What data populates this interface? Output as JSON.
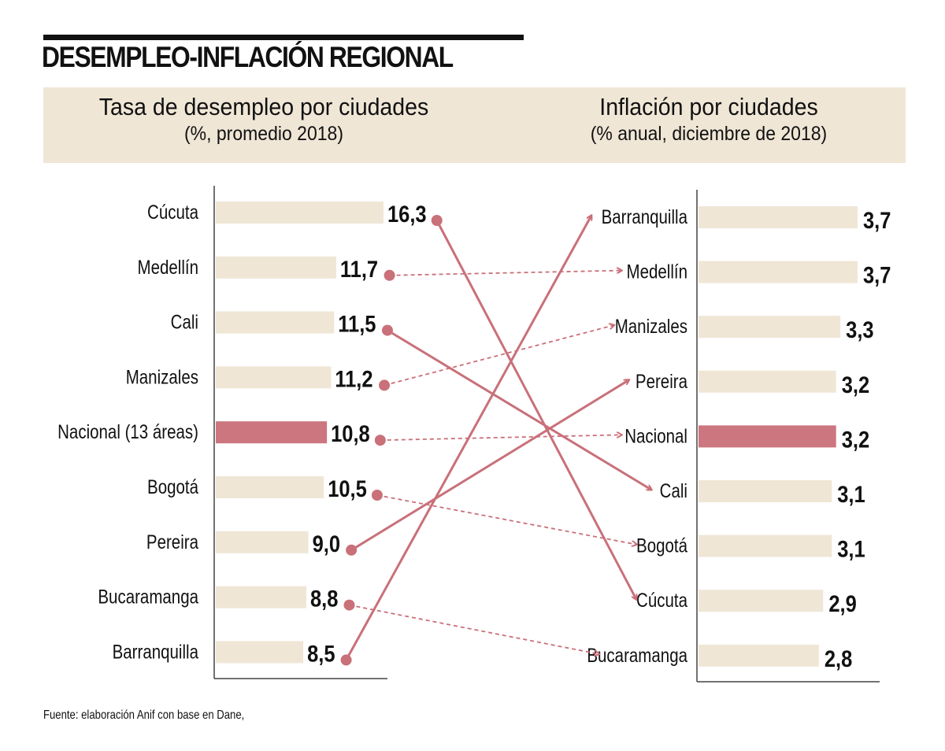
{
  "title": "DESEMPLEO-INFLACIÓN REGIONAL",
  "colors": {
    "bar": "#efe6d6",
    "highlight": "#cc7680",
    "link": "#c97079",
    "axis": "#444444",
    "text": "#111111"
  },
  "left_header": {
    "title": "Tasa de desempleo por ciudades",
    "subtitle": "(%, promedio 2018)"
  },
  "right_header": {
    "title": "Inflación por ciudades",
    "subtitle": "(% anual, diciembre de 2018)"
  },
  "footer": "Fuente: elaboración Anif con base en Dane,",
  "chart_data": [
    {
      "type": "bar",
      "orientation": "horizontal",
      "title": "Tasa de desempleo por ciudades",
      "subtitle": "(%, promedio 2018)",
      "categories": [
        "Cúcuta",
        "Medellín",
        "Cali",
        "Manizales",
        "Nacional (13 áreas)",
        "Bogotá",
        "Pereira",
        "Bucaramanga",
        "Barranquilla"
      ],
      "values": [
        16.3,
        11.7,
        11.5,
        11.2,
        10.8,
        10.5,
        9.0,
        8.8,
        8.5
      ],
      "labels": [
        "16,3",
        "11,7",
        "11,5",
        "11,2",
        "10,8",
        "10,5",
        "9,0",
        "8,8",
        "8,5"
      ],
      "highlight": "Nacional (13 áreas)",
      "xlim": [
        0,
        16.3
      ]
    },
    {
      "type": "bar",
      "orientation": "horizontal",
      "title": "Inflación por ciudades",
      "subtitle": "(% anual, diciembre de 2018)",
      "categories": [
        "Barranquilla",
        "Medellín",
        "Manizales",
        "Pereira",
        "Nacional",
        "Cali",
        "Bogotá",
        "Cúcuta",
        "Bucaramanga"
      ],
      "values": [
        3.7,
        3.7,
        3.3,
        3.2,
        3.2,
        3.1,
        3.1,
        2.9,
        2.8
      ],
      "labels": [
        "3,7",
        "3,7",
        "3,3",
        "3,2",
        "3,2",
        "3,1",
        "3,1",
        "2,9",
        "2,8"
      ],
      "highlight": "Nacional",
      "xlim": [
        0,
        3.7
      ]
    }
  ],
  "links": [
    {
      "from": "Cúcuta",
      "to": "Cúcuta",
      "style": "solid"
    },
    {
      "from": "Medellín",
      "to": "Medellín",
      "style": "dashed"
    },
    {
      "from": "Cali",
      "to": "Cali",
      "style": "solid"
    },
    {
      "from": "Manizales",
      "to": "Manizales",
      "style": "dashed"
    },
    {
      "from": "Nacional (13 áreas)",
      "to": "Nacional",
      "style": "dashed"
    },
    {
      "from": "Bogotá",
      "to": "Bogotá",
      "style": "dashed"
    },
    {
      "from": "Pereira",
      "to": "Pereira",
      "style": "solid"
    },
    {
      "from": "Bucaramanga",
      "to": "Bucaramanga",
      "style": "dashed"
    },
    {
      "from": "Barranquilla",
      "to": "Barranquilla",
      "style": "solid"
    }
  ]
}
